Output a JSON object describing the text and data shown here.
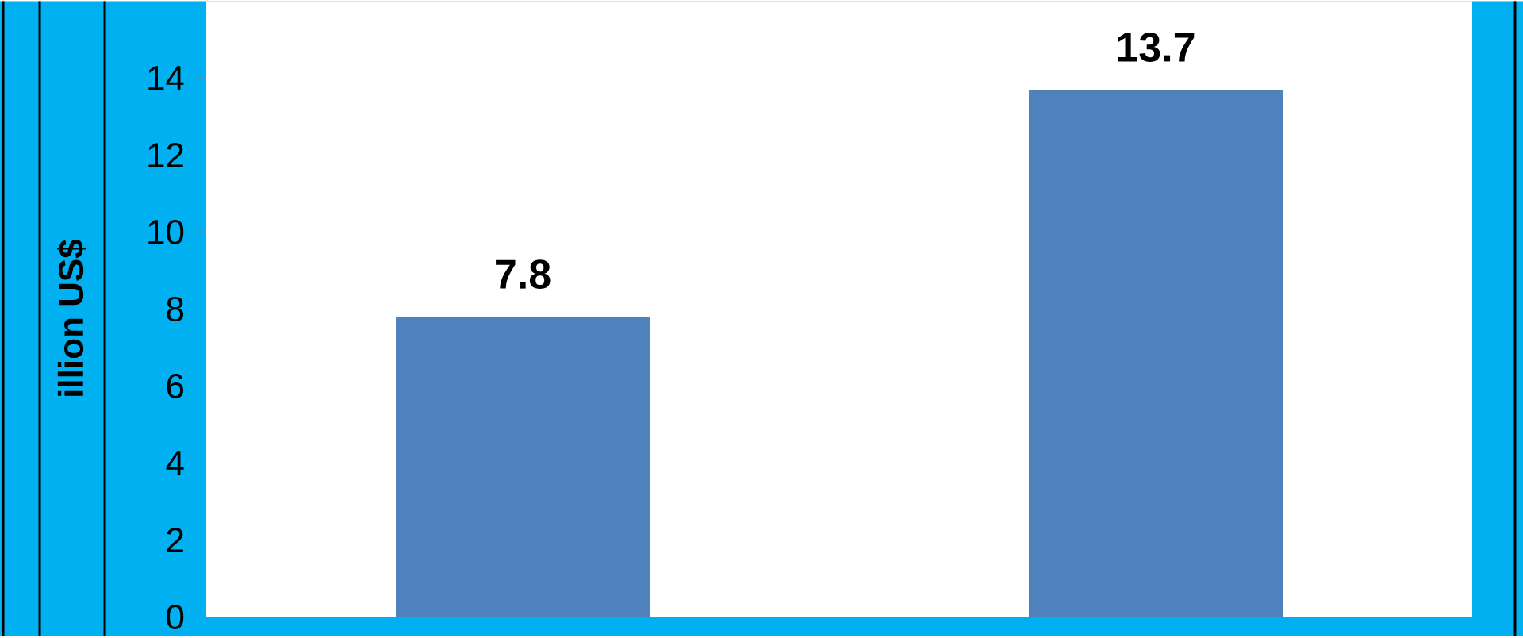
{
  "chart_data": {
    "type": "bar",
    "ylabel": "illion US$",
    "categories": [
      null,
      null
    ],
    "values": [
      7.8,
      13.7
    ],
    "color": "#4f81bd",
    "ylim": [
      0,
      16
    ],
    "yticks": [
      0,
      2,
      4,
      6,
      8,
      10,
      12,
      14
    ],
    "data_labels": true,
    "grid": false
  }
}
